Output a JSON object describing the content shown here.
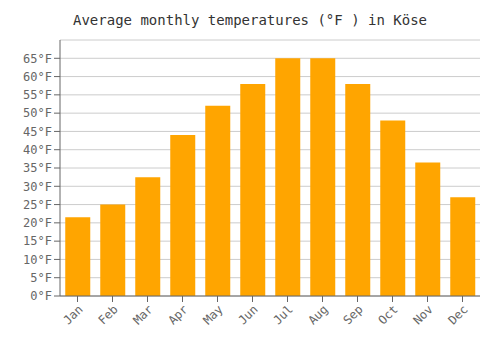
{
  "chart_data": {
    "type": "bar",
    "title": "Average monthly temperatures (°F ) in Köse",
    "categories": [
      "Jan",
      "Feb",
      "Mar",
      "Apr",
      "May",
      "Jun",
      "Jul",
      "Aug",
      "Sep",
      "Oct",
      "Nov",
      "Dec"
    ],
    "values": [
      21.5,
      25.0,
      32.5,
      44.0,
      52.0,
      58.0,
      65.0,
      65.0,
      58.0,
      48.0,
      36.5,
      27.0
    ],
    "color": "#FFA500",
    "ylim": [
      0,
      70
    ],
    "yticks": [
      {
        "value": 0,
        "label": "0°F"
      },
      {
        "value": 5,
        "label": "5°F"
      },
      {
        "value": 10,
        "label": "10°F"
      },
      {
        "value": 15,
        "label": "15°F"
      },
      {
        "value": 20,
        "label": "20°F"
      },
      {
        "value": 25,
        "label": "25°F"
      },
      {
        "value": 30,
        "label": "30°F"
      },
      {
        "value": 35,
        "label": "35°F"
      },
      {
        "value": 40,
        "label": "40°F"
      },
      {
        "value": 45,
        "label": "45°F"
      },
      {
        "value": 50,
        "label": "50°F"
      },
      {
        "value": 55,
        "label": "55°F"
      },
      {
        "value": 60,
        "label": "60°F"
      },
      {
        "value": 65,
        "label": "65°F"
      }
    ],
    "grid": true
  }
}
